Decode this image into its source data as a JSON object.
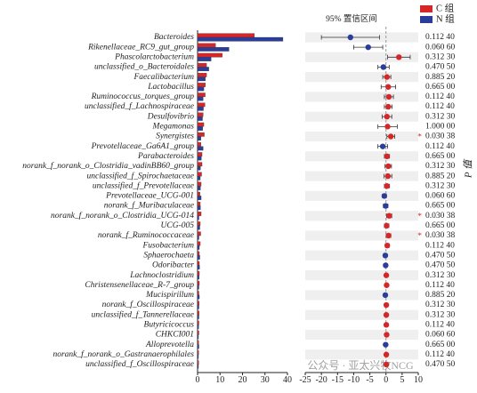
{
  "chart_data": {
    "type": "bar",
    "orientation": "horizontal",
    "categories": [
      "Bacteroides",
      "Rikenellaceae_RC9_gut_group",
      "Phascolarctobacterium",
      "unclassified_o_Bacteroidales",
      "Faecalibacterium",
      "Lactobacillus",
      "Ruminococcus_torques_group",
      "unclassified_f_Lachnospiraceae",
      "Desulfovibrio",
      "Megamonas",
      "Synergistes",
      "Prevotellaceae_Ga6A1_group",
      "Parabacteroides",
      "norank_f_norank_o_Clostridia_vadinBB60_group",
      "unclassified_f_Spirochaetaceae",
      "unclassified_f_Prevotellaceae",
      "Prevotellaceae_UCG-001",
      "norank_f_Muribaculaceae",
      "norank_f_norank_o_Clostridia_UCG-014",
      "UCG-005",
      "norank_f_Ruminococcaceae",
      "Fusobacterium",
      "Sphaerochaeta",
      "Odoribacter",
      "Lachnoclostridium",
      "Christensenellaceae_R-7_group",
      "Mucispirillum",
      "norank_f_Oscillospiraceae",
      "unclassified_f_Tannerellaceae",
      "Butyricicoccus",
      "CHKCI001",
      "Alloprevotella",
      "norank_f_norank_o_Gastranaerophilales",
      "unclassified_f_Oscillospiraceae"
    ],
    "series": [
      {
        "name": "C 组",
        "color": "#d62728",
        "values": [
          25.3,
          8,
          11,
          4,
          4,
          3.5,
          3.4,
          3.3,
          2.5,
          2.8,
          3,
          1.5,
          2,
          2,
          1.8,
          1.6,
          1.1,
          1.2,
          1.6,
          1.2,
          1.4,
          1.2,
          0.8,
          0.8,
          0.8,
          0.8,
          0.6,
          0.7,
          0.7,
          0.6,
          0.6,
          0.5,
          0.5,
          0.5
        ]
      },
      {
        "name": "N 组",
        "color": "#2b3d9a",
        "values": [
          38,
          14,
          6,
          5,
          3.5,
          2.8,
          2.5,
          2.6,
          2.2,
          2.3,
          1.5,
          2.5,
          1.7,
          1.3,
          1.2,
          1.3,
          1.6,
          1.3,
          0.6,
          1,
          0.6,
          0.8,
          1,
          0.9,
          0.7,
          0.6,
          0.8,
          0.6,
          0.6,
          0.5,
          0.4,
          0.6,
          0.4,
          0.4
        ]
      }
    ],
    "xlim": [
      0,
      40
    ],
    "xticks": [
      0,
      10,
      20,
      30,
      40
    ],
    "difference": {
      "type": "errorbar",
      "title": "95% 置信区间",
      "values": [
        -11,
        -5.5,
        4,
        -0.8,
        0.3,
        0.7,
        0.9,
        0.7,
        0.3,
        0.5,
        1.5,
        -1,
        0.3,
        0.7,
        0.6,
        0.3,
        -0.5,
        -0.1,
        1,
        0.2,
        0.8,
        0.4,
        -0.2,
        -0.1,
        0.1,
        0.2,
        -0.2,
        0.1,
        0.1,
        0.1,
        0.2,
        -0.1,
        0.1,
        0.1
      ],
      "ci_low": [
        -20,
        -10,
        0.5,
        -2.5,
        -1,
        -1.5,
        -0.5,
        -0.5,
        -1.2,
        -2.5,
        0.3,
        -2.5,
        -0.5,
        -0.3,
        -0.6,
        -0.5,
        -1.1,
        -0.8,
        0.2,
        -0.5,
        0.1,
        -0.2,
        -0.7,
        -0.5,
        -0.3,
        -0.1,
        -0.6,
        -0.2,
        -0.2,
        -0.1,
        -0.1,
        -0.4,
        -0.1,
        -0.2
      ],
      "ci_high": [
        -2,
        -1,
        7.5,
        1,
        1.5,
        3,
        2.3,
        1.9,
        1.8,
        3.5,
        2.7,
        0.5,
        1.1,
        1.7,
        1.8,
        1.1,
        0.1,
        0.6,
        1.8,
        0.9,
        1.5,
        1.0,
        0.3,
        0.3,
        0.5,
        0.5,
        0.2,
        0.4,
        0.4,
        0.3,
        0.5,
        0.2,
        0.3,
        0.4
      ],
      "xlim": [
        -25,
        10
      ],
      "xticks": [
        -25,
        -20,
        -15,
        -10,
        -5,
        0,
        5,
        10
      ]
    },
    "p_axis_label": "P 值",
    "p_values": [
      "0.112 40",
      "0.060 60",
      "0.312 30",
      "0.470 50",
      "0.885 20",
      "0.665 00",
      "0.112 40",
      "0.112 40",
      "0.312 30",
      "1.000 00",
      "0.030 38",
      "0.112 40",
      "0.665 00",
      "0.312 30",
      "0.885 20",
      "0.312 30",
      "0.060 60",
      "0.665 00",
      "0.030 38",
      "0.665 00",
      "0.030 38",
      "0.112 40",
      "0.470 50",
      "0.470 50",
      "0.312 30",
      "0.112 40",
      "0.885 20",
      "0.312 30",
      "0.312 30",
      "0.112 40",
      "0.060 60",
      "0.665 00",
      "0.112 40",
      "0.470 50"
    ],
    "significant": [
      false,
      false,
      false,
      false,
      false,
      false,
      false,
      false,
      false,
      false,
      true,
      false,
      false,
      false,
      false,
      false,
      false,
      false,
      true,
      false,
      true,
      false,
      false,
      false,
      false,
      false,
      false,
      false,
      false,
      false,
      false,
      false,
      false,
      false
    ],
    "sig_mark": "*",
    "watermark": "公众号 · 亚太兴牧NCG"
  }
}
